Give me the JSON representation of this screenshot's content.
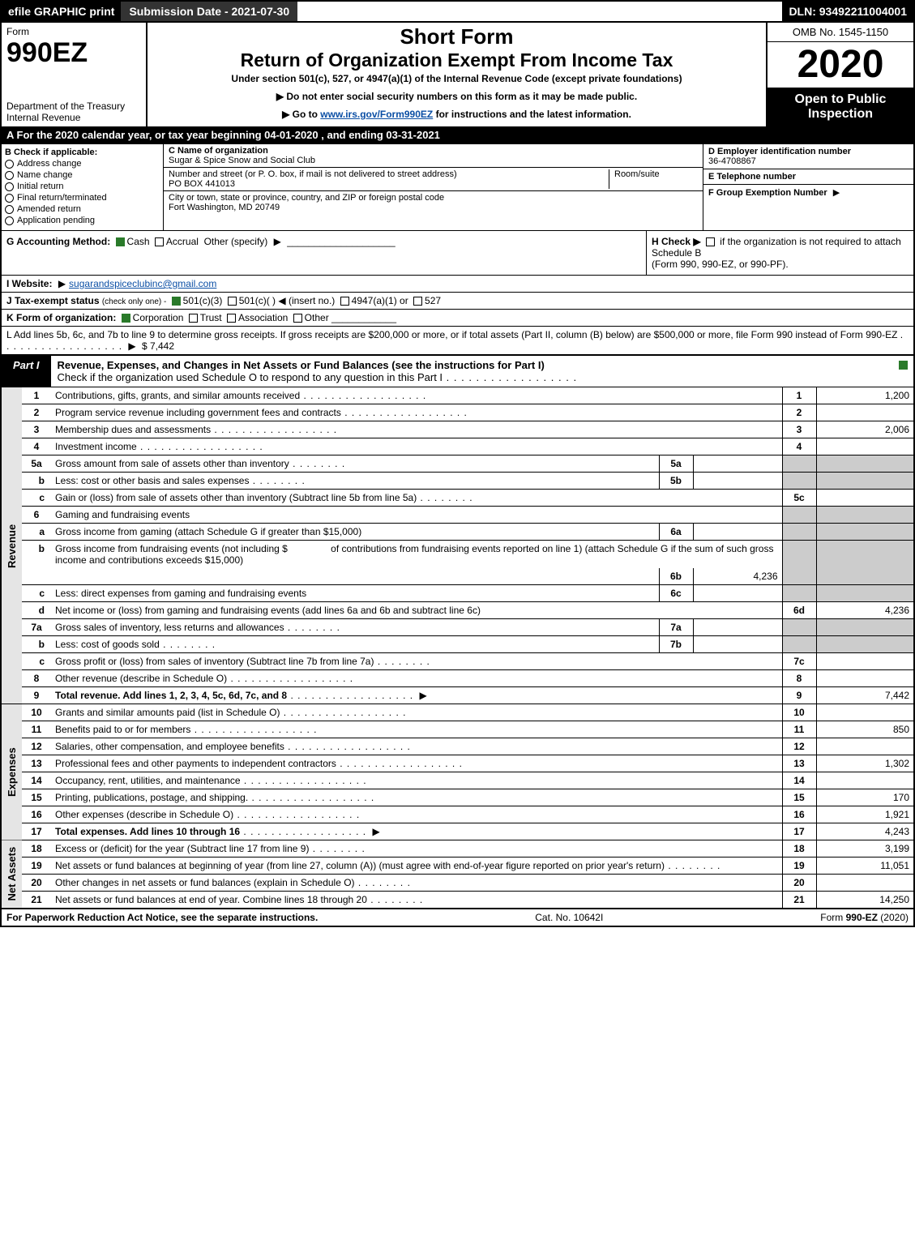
{
  "topbar": {
    "efile": "efile GRAPHIC print",
    "submission": "Submission Date - 2021-07-30",
    "dln": "DLN: 93492211004001"
  },
  "header": {
    "form_word": "Form",
    "form_num": "990EZ",
    "dept1": "Department of the Treasury",
    "dept2": "Internal Revenue",
    "short": "Short Form",
    "return_title": "Return of Organization Exempt From Income Tax",
    "under": "Under section 501(c), 527, or 4947(a)(1) of the Internal Revenue Code (except private foundations)",
    "note1": "Do not enter social security numbers on this form as it may be made public.",
    "note2_pre": "Go to ",
    "note2_link": "www.irs.gov/Form990EZ",
    "note2_post": " for instructions and the latest information.",
    "omb": "OMB No. 1545-1150",
    "year": "2020",
    "open": "Open to Public Inspection"
  },
  "section_a": "A For the 2020 calendar year, or tax year beginning 04-01-2020 , and ending 03-31-2021",
  "box_b": {
    "title": "B  Check if applicable:",
    "items": [
      "Address change",
      "Name change",
      "Initial return",
      "Final return/terminated",
      "Amended return",
      "Application pending"
    ]
  },
  "box_c": {
    "c_label": "C Name of organization",
    "c_value": "Sugar & Spice Snow and Social Club",
    "addr_label": "Number and street (or P. O. box, if mail is not delivered to street address)",
    "addr_value": "PO BOX 441013",
    "room_label": "Room/suite",
    "city_label": "City or town, state or province, country, and ZIP or foreign postal code",
    "city_value": "Fort Washington, MD  20749"
  },
  "box_d": {
    "d_label": "D Employer identification number",
    "d_value": "36-4708867",
    "e_label": "E Telephone number",
    "f_label": "F Group Exemption Number"
  },
  "g": {
    "label": "G Accounting Method:",
    "cash": "Cash",
    "accrual": "Accrual",
    "other": "Other (specify)"
  },
  "h": {
    "text1": "H  Check ▶",
    "text2": "if the organization is not required to attach Schedule B",
    "text3": "(Form 990, 990-EZ, or 990-PF)."
  },
  "i": {
    "label": "I Website:",
    "value": "sugarandspiceclubinc@gmail.com"
  },
  "j": {
    "label": "J Tax-exempt status",
    "sub": "(check only one) -",
    "o1": "501(c)(3)",
    "o2": "501(c)( )",
    "o2b": "(insert no.)",
    "o3": "4947(a)(1) or",
    "o4": "527"
  },
  "k": {
    "label": "K Form of organization:",
    "o1": "Corporation",
    "o2": "Trust",
    "o3": "Association",
    "o4": "Other"
  },
  "l": {
    "text": "L Add lines 5b, 6c, and 7b to line 9 to determine gross receipts. If gross receipts are $200,000 or more, or if total assets (Part II, column (B) below) are $500,000 or more, file Form 990 instead of Form 990-EZ",
    "amount": "$ 7,442"
  },
  "part1": {
    "tab": "Part I",
    "title": "Revenue, Expenses, and Changes in Net Assets or Fund Balances (see the instructions for Part I)",
    "subtitle": "Check if the organization used Schedule O to respond to any question in this Part I"
  },
  "sections": {
    "revenue": "Revenue",
    "expenses": "Expenses",
    "netassets": "Net Assets"
  },
  "rows": {
    "r1": {
      "n": "1",
      "d": "Contributions, gifts, grants, and similar amounts received",
      "rn": "1",
      "v": "1,200"
    },
    "r2": {
      "n": "2",
      "d": "Program service revenue including government fees and contracts",
      "rn": "2",
      "v": ""
    },
    "r3": {
      "n": "3",
      "d": "Membership dues and assessments",
      "rn": "3",
      "v": "2,006"
    },
    "r4": {
      "n": "4",
      "d": "Investment income",
      "rn": "4",
      "v": ""
    },
    "r5a": {
      "n": "5a",
      "d": "Gross amount from sale of assets other than inventory",
      "in": "5a",
      "iv": ""
    },
    "r5b": {
      "n": "b",
      "d": "Less: cost or other basis and sales expenses",
      "in": "5b",
      "iv": ""
    },
    "r5c": {
      "n": "c",
      "d": "Gain or (loss) from sale of assets other than inventory (Subtract line 5b from line 5a)",
      "rn": "5c",
      "v": ""
    },
    "r6": {
      "n": "6",
      "d": "Gaming and fundraising events"
    },
    "r6a": {
      "n": "a",
      "d": "Gross income from gaming (attach Schedule G if greater than $15,000)",
      "in": "6a",
      "iv": ""
    },
    "r6b": {
      "n": "b",
      "d1": "Gross income from fundraising events (not including $",
      "d2": "of contributions from fundraising events reported on line 1) (attach Schedule G if the sum of such gross income and contributions exceeds $15,000)",
      "in": "6b",
      "iv": "4,236"
    },
    "r6c": {
      "n": "c",
      "d": "Less: direct expenses from gaming and fundraising events",
      "in": "6c",
      "iv": ""
    },
    "r6d": {
      "n": "d",
      "d": "Net income or (loss) from gaming and fundraising events (add lines 6a and 6b and subtract line 6c)",
      "rn": "6d",
      "v": "4,236"
    },
    "r7a": {
      "n": "7a",
      "d": "Gross sales of inventory, less returns and allowances",
      "in": "7a",
      "iv": ""
    },
    "r7b": {
      "n": "b",
      "d": "Less: cost of goods sold",
      "in": "7b",
      "iv": ""
    },
    "r7c": {
      "n": "c",
      "d": "Gross profit or (loss) from sales of inventory (Subtract line 7b from line 7a)",
      "rn": "7c",
      "v": ""
    },
    "r8": {
      "n": "8",
      "d": "Other revenue (describe in Schedule O)",
      "rn": "8",
      "v": ""
    },
    "r9": {
      "n": "9",
      "d": "Total revenue. Add lines 1, 2, 3, 4, 5c, 6d, 7c, and 8",
      "rn": "9",
      "v": "7,442"
    },
    "r10": {
      "n": "10",
      "d": "Grants and similar amounts paid (list in Schedule O)",
      "rn": "10",
      "v": ""
    },
    "r11": {
      "n": "11",
      "d": "Benefits paid to or for members",
      "rn": "11",
      "v": "850"
    },
    "r12": {
      "n": "12",
      "d": "Salaries, other compensation, and employee benefits",
      "rn": "12",
      "v": ""
    },
    "r13": {
      "n": "13",
      "d": "Professional fees and other payments to independent contractors",
      "rn": "13",
      "v": "1,302"
    },
    "r14": {
      "n": "14",
      "d": "Occupancy, rent, utilities, and maintenance",
      "rn": "14",
      "v": ""
    },
    "r15": {
      "n": "15",
      "d": "Printing, publications, postage, and shipping.",
      "rn": "15",
      "v": "170"
    },
    "r16": {
      "n": "16",
      "d": "Other expenses (describe in Schedule O)",
      "rn": "16",
      "v": "1,921"
    },
    "r17": {
      "n": "17",
      "d": "Total expenses. Add lines 10 through 16",
      "rn": "17",
      "v": "4,243"
    },
    "r18": {
      "n": "18",
      "d": "Excess or (deficit) for the year (Subtract line 17 from line 9)",
      "rn": "18",
      "v": "3,199"
    },
    "r19": {
      "n": "19",
      "d": "Net assets or fund balances at beginning of year (from line 27, column (A)) (must agree with end-of-year figure reported on prior year's return)",
      "rn": "19",
      "v": "11,051"
    },
    "r20": {
      "n": "20",
      "d": "Other changes in net assets or fund balances (explain in Schedule O)",
      "rn": "20",
      "v": ""
    },
    "r21": {
      "n": "21",
      "d": "Net assets or fund balances at end of year. Combine lines 18 through 20",
      "rn": "21",
      "v": "14,250"
    }
  },
  "footer": {
    "left": "For Paperwork Reduction Act Notice, see the separate instructions.",
    "mid": "Cat. No. 10642I",
    "right_pre": "Form ",
    "right_bold": "990-EZ",
    "right_post": " (2020)"
  },
  "colors": {
    "black": "#000000",
    "white": "#ffffff",
    "shade": "#cccccc",
    "section_bg": "#e5e5e5",
    "link": "#0b4fa5",
    "green": "#2a7a2a",
    "darkgrey": "#333333"
  }
}
